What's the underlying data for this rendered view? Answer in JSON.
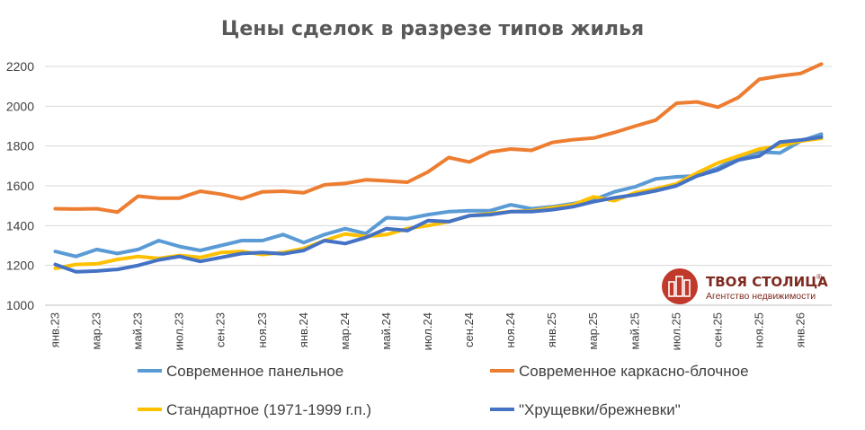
{
  "chart_data": {
    "type": "line",
    "title": "Цены сделок в разрезе типов жилья",
    "xlabel": "",
    "ylabel": "",
    "ylim": [
      1000,
      2200
    ],
    "yticks": [
      "1000",
      "1200",
      "1400",
      "1600",
      "1800",
      "2000",
      "2200"
    ],
    "grid": true,
    "legend_position": "bottom",
    "categories": [
      "янв.23",
      "фев.23",
      "мар.23",
      "апр.23",
      "май.23",
      "июн.23",
      "июл.23",
      "авг.23",
      "сен.23",
      "окт.23",
      "ноя.23",
      "дек.23",
      "янв.24",
      "фев.24",
      "мар.24",
      "апр.24",
      "май.24",
      "июн.24",
      "июл.24",
      "авг.24",
      "сен.24",
      "окт.24",
      "ноя.24",
      "дек.24",
      "янв.25",
      "фев.25",
      "мар.25",
      "апр.25",
      "май.25",
      "июн.25",
      "июл.25",
      "авг.25",
      "сен.25",
      "окт.25",
      "ноя.25",
      "дек.25",
      "янв.26",
      "фев.26"
    ],
    "x_tick_labels": [
      "янв.23",
      "",
      "мар.23",
      "",
      "май.23",
      "",
      "июл.23",
      "",
      "сен.23",
      "",
      "ноя.23",
      "",
      "янв.24",
      "",
      "мар.24",
      "",
      "май.24",
      "",
      "июл.24",
      "",
      "сен.24",
      "",
      "ноя.24",
      "",
      "янв.25",
      "",
      "мар.25",
      "",
      "май.25",
      "",
      "июл.25",
      "",
      "сен.25",
      "",
      "ноя.25",
      "",
      "янв.26",
      ""
    ],
    "series": [
      {
        "name": "Современное панельное",
        "color": "#5b9bd5",
        "values": [
          1270,
          1245,
          1280,
          1260,
          1280,
          1325,
          1295,
          1275,
          1300,
          1325,
          1325,
          1355,
          1315,
          1355,
          1385,
          1360,
          1440,
          1435,
          1455,
          1470,
          1475,
          1475,
          1505,
          1485,
          1495,
          1510,
          1530,
          1570,
          1595,
          1635,
          1645,
          1650,
          1690,
          1745,
          1770,
          1765,
          1825,
          1860
        ]
      },
      {
        "name": "Современное каркасно-блочное",
        "color": "#ed7d31",
        "values": [
          1485,
          1483,
          1485,
          1468,
          1548,
          1538,
          1538,
          1573,
          1558,
          1535,
          1570,
          1573,
          1565,
          1605,
          1612,
          1630,
          1625,
          1618,
          1670,
          1742,
          1720,
          1770,
          1785,
          1778,
          1818,
          1832,
          1840,
          1868,
          1900,
          1930,
          2015,
          2022,
          1995,
          2045,
          2135,
          2152,
          2165,
          2212
        ]
      },
      {
        "name": "Стандартное (1971-1999 г.п.)",
        "color": "#ffc000",
        "values": [
          1185,
          1205,
          1208,
          1230,
          1245,
          1235,
          1250,
          1240,
          1265,
          1270,
          1255,
          1265,
          1285,
          1325,
          1358,
          1345,
          1355,
          1385,
          1400,
          1420,
          1450,
          1460,
          1470,
          1475,
          1490,
          1505,
          1545,
          1525,
          1565,
          1585,
          1610,
          1665,
          1715,
          1750,
          1785,
          1800,
          1825,
          1838
        ]
      },
      {
        "name": "\"Хрущевки/брежневки\"",
        "color": "#4472c4",
        "values": [
          1205,
          1168,
          1172,
          1180,
          1200,
          1228,
          1245,
          1220,
          1240,
          1260,
          1265,
          1258,
          1275,
          1325,
          1310,
          1340,
          1385,
          1375,
          1425,
          1420,
          1450,
          1455,
          1470,
          1470,
          1480,
          1495,
          1520,
          1540,
          1555,
          1575,
          1600,
          1650,
          1680,
          1730,
          1750,
          1820,
          1830,
          1845
        ]
      }
    ]
  },
  "logo": {
    "name": "ТВОЯ СТОЛИЦА",
    "registered": "®",
    "tagline": "Агентство недвижимости",
    "color": "#c0392b"
  }
}
